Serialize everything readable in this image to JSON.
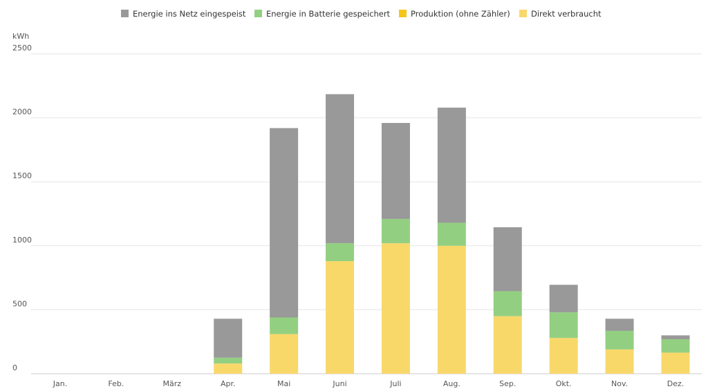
{
  "chart_data": {
    "type": "bar",
    "stacked": true,
    "title": "",
    "ylabel": "kWh",
    "xlabel": "",
    "ylim": [
      0,
      2500
    ],
    "yticks": [
      0,
      500,
      1000,
      1500,
      2000,
      2500
    ],
    "grid": true,
    "legend_position": "top-center",
    "categories": [
      "Jan.",
      "Feb.",
      "März",
      "Apr.",
      "Mai",
      "Juni",
      "Juli",
      "Aug.",
      "Sep.",
      "Okt.",
      "Nov.",
      "Dez."
    ],
    "legend": [
      {
        "name": "Energie ins Netz eingespeist",
        "color": "#999999"
      },
      {
        "name": "Energie in Batterie gespeichert",
        "color": "#93cf81"
      },
      {
        "name": "Produktion (ohne Zähler)",
        "color": "#f5c518"
      },
      {
        "name": "Direkt verbraucht",
        "color": "#f9d86a"
      }
    ],
    "series": [
      {
        "name": "Direkt verbraucht",
        "color": "#f9d86a",
        "values": [
          0,
          0,
          0,
          80,
          310,
          880,
          1020,
          1000,
          450,
          280,
          190,
          165
        ]
      },
      {
        "name": "Produktion (ohne Zähler)",
        "color": "#f5c518",
        "values": [
          0,
          0,
          0,
          0,
          0,
          0,
          0,
          0,
          0,
          0,
          0,
          0
        ]
      },
      {
        "name": "Energie in Batterie gespeichert",
        "color": "#93cf81",
        "values": [
          0,
          0,
          0,
          45,
          130,
          140,
          190,
          180,
          195,
          200,
          145,
          105
        ]
      },
      {
        "name": "Energie ins Netz eingespeist",
        "color": "#999999",
        "values": [
          0,
          0,
          0,
          305,
          1480,
          1165,
          750,
          900,
          500,
          215,
          95,
          30
        ]
      }
    ]
  }
}
